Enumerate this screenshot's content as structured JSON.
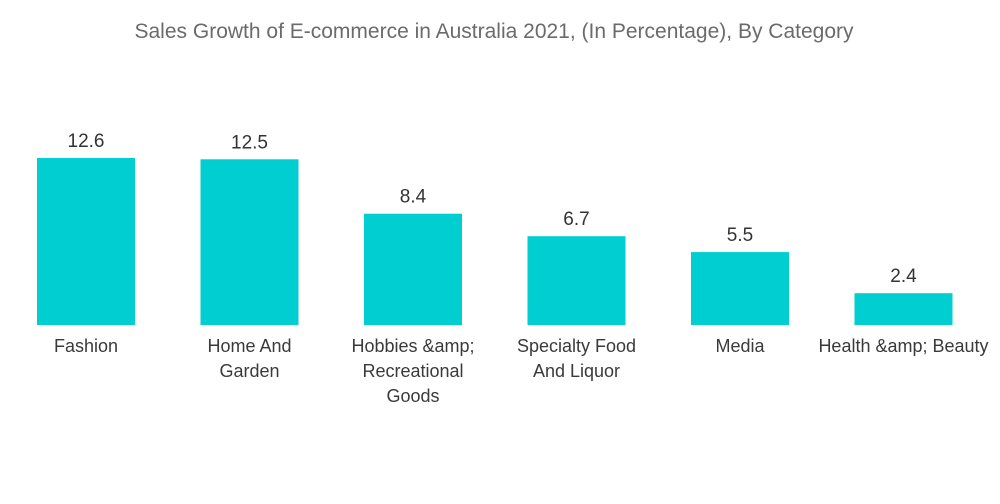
{
  "chart_data": {
    "type": "bar",
    "title": "Sales Growth of E-commerce in Australia 2021, (In Percentage), By Category",
    "xlabel": "",
    "ylabel": "",
    "categories": [
      "Fashion",
      "Home And Garden",
      "Hobbies &amp; Recreational Goods",
      "Specialty Food And Liquor",
      "Media",
      "Health &amp; Beauty"
    ],
    "category_lines": [
      [
        "Fashion"
      ],
      [
        "Home And",
        "Garden"
      ],
      [
        "Hobbies &amp;",
        "Recreational",
        "Goods"
      ],
      [
        "Specialty Food",
        "And Liquor"
      ],
      [
        "Media"
      ],
      [
        "Health &amp; Beauty"
      ]
    ],
    "values": [
      12.6,
      12.5,
      8.4,
      6.7,
      5.5,
      2.4
    ],
    "value_labels": [
      "12.6",
      "12.5",
      "8.4",
      "6.7",
      "5.5",
      "2.4"
    ],
    "ylim": [
      0,
      12.6
    ],
    "grid": false,
    "legend": "none",
    "bar_color": "#00CED1",
    "text_color": "#333333",
    "title_color": "#6b6b6b"
  }
}
